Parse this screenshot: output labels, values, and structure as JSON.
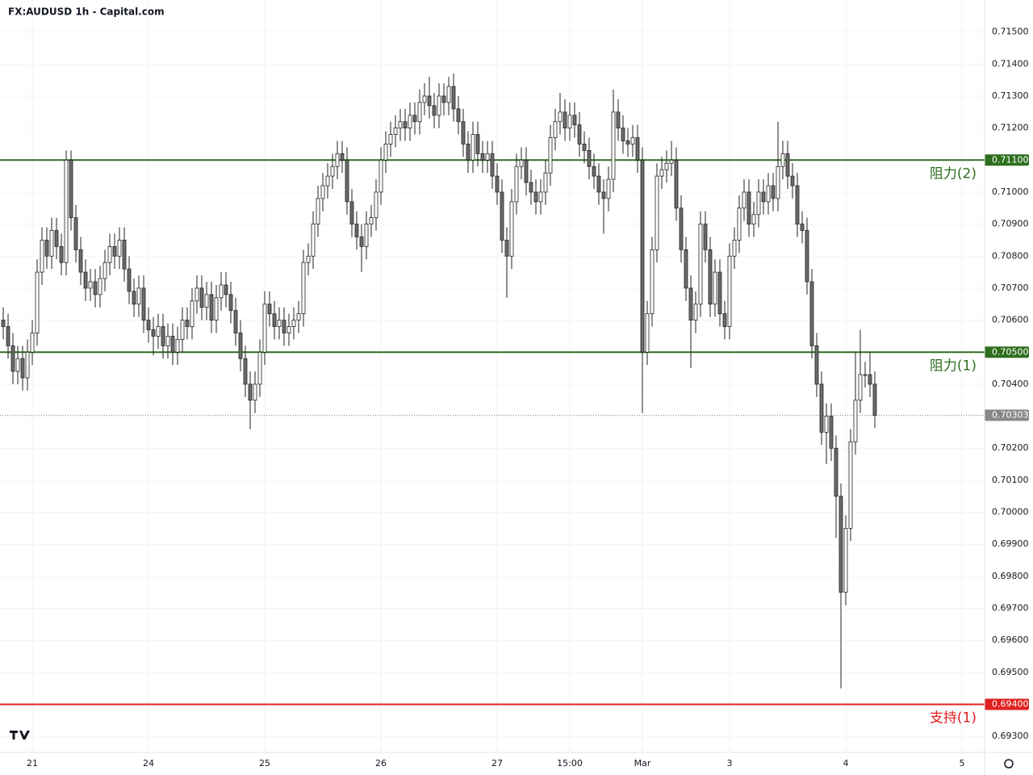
{
  "chart_data": {
    "type": "candlestick",
    "title": "FX:AUDUSD 1h - Capital.com",
    "x": [
      0,
      1,
      2,
      3,
      4,
      5,
      6,
      7,
      8,
      9,
      10,
      11,
      12,
      13,
      14,
      15,
      16,
      17,
      18,
      19,
      20,
      21,
      22,
      23,
      24,
      25,
      26,
      27,
      28,
      29,
      30,
      31,
      32,
      33,
      34,
      35,
      36,
      37,
      38,
      39,
      40,
      41,
      42,
      43,
      44,
      45,
      46,
      47,
      48,
      49,
      50,
      51,
      52,
      53,
      54,
      55,
      56,
      57,
      58,
      59,
      60,
      61,
      62,
      63,
      64,
      65,
      66,
      67,
      68,
      69,
      70,
      71,
      72,
      73,
      74,
      75,
      76,
      77,
      78,
      79,
      80,
      81,
      82,
      83,
      84,
      85,
      86,
      87,
      88,
      89,
      90,
      91,
      92,
      93,
      94,
      95,
      96,
      97,
      98,
      99,
      100,
      101,
      102,
      103,
      104,
      105,
      106,
      107,
      108,
      109,
      110,
      111,
      112,
      113,
      114,
      115,
      116,
      117,
      118,
      119,
      120,
      121,
      122,
      123,
      124,
      125,
      126,
      127,
      128,
      129,
      130,
      131,
      132,
      133,
      134,
      135,
      136,
      137,
      138,
      139,
      140,
      141,
      142,
      143,
      144,
      145,
      146,
      147,
      148,
      149,
      150,
      151,
      152,
      153,
      154,
      155,
      156,
      157,
      158,
      159,
      160,
      161,
      162,
      163,
      164,
      165,
      166,
      167,
      168,
      169,
      170,
      171,
      172,
      173,
      174,
      175,
      176,
      177,
      178,
      179,
      180
    ],
    "open": [
      0.706,
      0.7058,
      0.7052,
      0.7044,
      0.7048,
      0.7042,
      0.705,
      0.7056,
      0.7075,
      0.7085,
      0.708,
      0.7088,
      0.7083,
      0.7078,
      0.711,
      0.7092,
      0.7082,
      0.7075,
      0.707,
      0.7072,
      0.7068,
      0.7073,
      0.7078,
      0.7083,
      0.708,
      0.7085,
      0.7076,
      0.7069,
      0.7065,
      0.707,
      0.706,
      0.7057,
      0.7055,
      0.7058,
      0.7052,
      0.7055,
      0.705,
      0.7054,
      0.706,
      0.7058,
      0.7066,
      0.707,
      0.7064,
      0.7068,
      0.706,
      0.7067,
      0.7071,
      0.7068,
      0.7063,
      0.7056,
      0.7048,
      0.704,
      0.7035,
      0.704,
      0.705,
      0.7065,
      0.7062,
      0.7058,
      0.706,
      0.7056,
      0.7058,
      0.706,
      0.7062,
      0.7078,
      0.708,
      0.709,
      0.7098,
      0.7102,
      0.7105,
      0.7108,
      0.7112,
      0.711,
      0.7097,
      0.709,
      0.7086,
      0.7083,
      0.709,
      0.7092,
      0.71,
      0.711,
      0.7115,
      0.7118,
      0.712,
      0.7122,
      0.712,
      0.7124,
      0.7122,
      0.7128,
      0.713,
      0.7127,
      0.7124,
      0.713,
      0.7128,
      0.7133,
      0.7126,
      0.7122,
      0.7115,
      0.711,
      0.7118,
      0.7112,
      0.711,
      0.7112,
      0.7105,
      0.71,
      0.7085,
      0.708,
      0.7097,
      0.7108,
      0.711,
      0.7103,
      0.71,
      0.7097,
      0.71,
      0.7106,
      0.7117,
      0.7122,
      0.7125,
      0.712,
      0.7124,
      0.7121,
      0.7115,
      0.7113,
      0.7108,
      0.7105,
      0.71,
      0.7098,
      0.7104,
      0.7125,
      0.712,
      0.7116,
      0.7115,
      0.7117,
      0.711,
      0.705,
      0.7062,
      0.7082,
      0.7105,
      0.7107,
      0.7109,
      0.711,
      0.7095,
      0.7082,
      0.707,
      0.706,
      0.7065,
      0.709,
      0.7082,
      0.7065,
      0.7075,
      0.7062,
      0.7058,
      0.708,
      0.7085,
      0.7095,
      0.71,
      0.709,
      0.7093,
      0.71,
      0.7097,
      0.7102,
      0.7098,
      0.7108,
      0.7112,
      0.7105,
      0.7102,
      0.709,
      0.7088,
      0.7072,
      0.7052,
      0.704,
      0.7025,
      0.703,
      0.702,
      0.7005,
      0.6975,
      0.6995,
      0.7022,
      0.7035,
      0.7043,
      0.7043,
      0.704
    ],
    "high": [
      0.7064,
      0.7062,
      0.7056,
      0.7052,
      0.7052,
      0.7054,
      0.706,
      0.7079,
      0.7089,
      0.7089,
      0.7092,
      0.7092,
      0.7087,
      0.7113,
      0.7113,
      0.7096,
      0.7086,
      0.7079,
      0.7076,
      0.7076,
      0.7077,
      0.7082,
      0.7087,
      0.7087,
      0.7089,
      0.7089,
      0.708,
      0.7073,
      0.7074,
      0.7074,
      0.7064,
      0.7061,
      0.7062,
      0.7062,
      0.7059,
      0.7059,
      0.7058,
      0.7064,
      0.7064,
      0.707,
      0.7074,
      0.7074,
      0.7072,
      0.7072,
      0.7071,
      0.7075,
      0.7075,
      0.7072,
      0.7067,
      0.706,
      0.7052,
      0.7044,
      0.7044,
      0.7054,
      0.7069,
      0.7069,
      0.7066,
      0.7064,
      0.7064,
      0.7062,
      0.7064,
      0.7066,
      0.7082,
      0.7084,
      0.7094,
      0.7102,
      0.7106,
      0.7109,
      0.7112,
      0.7116,
      0.7116,
      0.7114,
      0.7101,
      0.7094,
      0.709,
      0.7094,
      0.7096,
      0.7104,
      0.7114,
      0.7119,
      0.7122,
      0.7124,
      0.7126,
      0.7126,
      0.7128,
      0.7128,
      0.7132,
      0.7134,
      0.7136,
      0.7131,
      0.7134,
      0.7134,
      0.7136,
      0.7137,
      0.713,
      0.7126,
      0.7119,
      0.7122,
      0.7122,
      0.7116,
      0.7116,
      0.7116,
      0.7109,
      0.7104,
      0.7089,
      0.7101,
      0.7112,
      0.7114,
      0.7114,
      0.7107,
      0.7104,
      0.7104,
      0.711,
      0.7121,
      0.7126,
      0.7131,
      0.7129,
      0.7128,
      0.7128,
      0.7125,
      0.7119,
      0.7117,
      0.7112,
      0.7109,
      0.7104,
      0.7108,
      0.7132,
      0.7129,
      0.7124,
      0.712,
      0.7121,
      0.7121,
      0.7114,
      0.7066,
      0.7086,
      0.7109,
      0.7111,
      0.7113,
      0.7116,
      0.7114,
      0.7099,
      0.7086,
      0.7074,
      0.7069,
      0.7094,
      0.7094,
      0.7086,
      0.7079,
      0.7079,
      0.7066,
      0.7084,
      0.7089,
      0.7099,
      0.7104,
      0.7104,
      0.7097,
      0.7104,
      0.7104,
      0.7106,
      0.7106,
      0.7122,
      0.7116,
      0.7116,
      0.7109,
      0.7106,
      0.7094,
      0.7092,
      0.7076,
      0.7056,
      0.7044,
      0.7034,
      0.7034,
      0.7024,
      0.7009,
      0.6999,
      0.7026,
      0.705,
      0.7057,
      0.7047,
      0.705,
      0.7044
    ],
    "low": [
      0.7054,
      0.7048,
      0.704,
      0.704,
      0.7038,
      0.7038,
      0.7046,
      0.7052,
      0.7071,
      0.7076,
      0.7076,
      0.7079,
      0.7074,
      0.7074,
      0.7088,
      0.7078,
      0.7071,
      0.7066,
      0.7066,
      0.7064,
      0.7064,
      0.7069,
      0.7074,
      0.7076,
      0.7076,
      0.7072,
      0.7065,
      0.7061,
      0.7061,
      0.7056,
      0.7053,
      0.7049,
      0.7051,
      0.7048,
      0.7048,
      0.7046,
      0.7046,
      0.705,
      0.7054,
      0.7054,
      0.7062,
      0.706,
      0.706,
      0.7056,
      0.7056,
      0.7063,
      0.7064,
      0.7059,
      0.7052,
      0.7044,
      0.7036,
      0.7026,
      0.7031,
      0.7036,
      0.7046,
      0.7058,
      0.7054,
      0.7054,
      0.7052,
      0.7052,
      0.7054,
      0.7056,
      0.7058,
      0.7074,
      0.7076,
      0.7086,
      0.7094,
      0.7098,
      0.7101,
      0.7104,
      0.7106,
      0.7093,
      0.7086,
      0.7082,
      0.7075,
      0.7079,
      0.7086,
      0.7088,
      0.7096,
      0.7106,
      0.7111,
      0.7114,
      0.7116,
      0.7116,
      0.7116,
      0.7118,
      0.7118,
      0.7124,
      0.7123,
      0.712,
      0.712,
      0.7124,
      0.7124,
      0.7122,
      0.7118,
      0.7111,
      0.7106,
      0.7106,
      0.7108,
      0.7106,
      0.7106,
      0.7101,
      0.7096,
      0.7081,
      0.7067,
      0.7076,
      0.7093,
      0.7104,
      0.7099,
      0.7096,
      0.7093,
      0.7093,
      0.7096,
      0.7102,
      0.7113,
      0.7118,
      0.7116,
      0.7116,
      0.7117,
      0.7111,
      0.7109,
      0.7104,
      0.7101,
      0.7096,
      0.7087,
      0.7094,
      0.71,
      0.7116,
      0.7112,
      0.7111,
      0.7111,
      0.7106,
      0.7031,
      0.7046,
      0.7058,
      0.7078,
      0.7101,
      0.7103,
      0.7105,
      0.7091,
      0.7078,
      0.7066,
      0.7045,
      0.7056,
      0.7061,
      0.7078,
      0.7061,
      0.7061,
      0.7058,
      0.7054,
      0.7054,
      0.7076,
      0.7081,
      0.7091,
      0.7086,
      0.7086,
      0.7089,
      0.7093,
      0.7093,
      0.7094,
      0.7094,
      0.7104,
      0.7101,
      0.7098,
      0.7086,
      0.7084,
      0.7068,
      0.7048,
      0.7036,
      0.7021,
      0.7015,
      0.7016,
      0.6992,
      0.6945,
      0.6971,
      0.6991,
      0.7018,
      0.7031,
      0.7039,
      0.7036,
      0.70263
    ],
    "close": [
      0.7058,
      0.7052,
      0.7044,
      0.7048,
      0.7042,
      0.705,
      0.7056,
      0.7075,
      0.7085,
      0.708,
      0.7088,
      0.7083,
      0.7078,
      0.711,
      0.7092,
      0.7082,
      0.7075,
      0.707,
      0.7072,
      0.7068,
      0.7073,
      0.7078,
      0.7083,
      0.708,
      0.7085,
      0.7076,
      0.7069,
      0.7065,
      0.707,
      0.706,
      0.7057,
      0.7055,
      0.7058,
      0.7052,
      0.7055,
      0.705,
      0.7054,
      0.706,
      0.7058,
      0.7066,
      0.707,
      0.7064,
      0.7068,
      0.706,
      0.7067,
      0.7071,
      0.7068,
      0.7063,
      0.7056,
      0.7048,
      0.704,
      0.7035,
      0.704,
      0.705,
      0.7065,
      0.7062,
      0.7058,
      0.706,
      0.7056,
      0.7058,
      0.706,
      0.7062,
      0.7078,
      0.708,
      0.709,
      0.7098,
      0.7102,
      0.7105,
      0.7108,
      0.7112,
      0.711,
      0.7097,
      0.709,
      0.7086,
      0.7083,
      0.709,
      0.7092,
      0.71,
      0.711,
      0.7115,
      0.7118,
      0.712,
      0.7122,
      0.712,
      0.7124,
      0.7122,
      0.7128,
      0.713,
      0.7127,
      0.7124,
      0.713,
      0.7128,
      0.7133,
      0.7126,
      0.7122,
      0.7115,
      0.711,
      0.7118,
      0.7112,
      0.711,
      0.7112,
      0.7105,
      0.71,
      0.7085,
      0.708,
      0.7097,
      0.7108,
      0.711,
      0.7103,
      0.71,
      0.7097,
      0.71,
      0.7106,
      0.7117,
      0.7122,
      0.7125,
      0.712,
      0.7124,
      0.7121,
      0.7115,
      0.7113,
      0.7108,
      0.7105,
      0.71,
      0.7098,
      0.7104,
      0.7125,
      0.712,
      0.7116,
      0.7115,
      0.7117,
      0.711,
      0.705,
      0.7062,
      0.7082,
      0.7105,
      0.7107,
      0.7109,
      0.711,
      0.7095,
      0.7082,
      0.707,
      0.706,
      0.7065,
      0.709,
      0.7082,
      0.7065,
      0.7075,
      0.7062,
      0.7058,
      0.708,
      0.7085,
      0.7095,
      0.71,
      0.709,
      0.7093,
      0.71,
      0.7097,
      0.7102,
      0.7098,
      0.7108,
      0.7112,
      0.7105,
      0.7102,
      0.709,
      0.7088,
      0.7072,
      0.7052,
      0.704,
      0.7025,
      0.703,
      0.702,
      0.7005,
      0.6975,
      0.6995,
      0.7022,
      0.7035,
      0.7043,
      0.7043,
      0.704,
      0.70303
    ],
    "up_color": "#ffffff",
    "down_color": "#6b6b6b",
    "edge_color": "#222222",
    "xlim": [
      -0.67,
      202.67
    ],
    "xticks": [
      {
        "value": 6,
        "label": "21"
      },
      {
        "value": 30,
        "label": "24"
      },
      {
        "value": 54,
        "label": "25"
      },
      {
        "value": 78,
        "label": "26"
      },
      {
        "value": 102,
        "label": "27"
      },
      {
        "value": 117,
        "label": "15:00"
      },
      {
        "value": 132,
        "label": "Mar"
      },
      {
        "value": 150,
        "label": "3"
      },
      {
        "value": 174,
        "label": "4"
      },
      {
        "value": 198,
        "label": "5"
      }
    ],
    "ylim": [
      0.6925,
      0.716
    ],
    "yticks": [
      {
        "value": 0.693,
        "label": "0.69300"
      },
      {
        "value": 0.694,
        "label": "0.69400"
      },
      {
        "value": 0.695,
        "label": "0.69500"
      },
      {
        "value": 0.696,
        "label": "0.69600"
      },
      {
        "value": 0.697,
        "label": "0.69700"
      },
      {
        "value": 0.698,
        "label": "0.69800"
      },
      {
        "value": 0.699,
        "label": "0.69900"
      },
      {
        "value": 0.7,
        "label": "0.70000"
      },
      {
        "value": 0.701,
        "label": "0.70100"
      },
      {
        "value": 0.702,
        "label": "0.70200"
      },
      {
        "value": 0.703,
        "label": "0.70300"
      },
      {
        "value": 0.704,
        "label": "0.70400"
      },
      {
        "value": 0.705,
        "label": "0.70500"
      },
      {
        "value": 0.706,
        "label": "0.70600"
      },
      {
        "value": 0.707,
        "label": "0.70700"
      },
      {
        "value": 0.708,
        "label": "0.70800"
      },
      {
        "value": 0.709,
        "label": "0.70900"
      },
      {
        "value": 0.71,
        "label": "0.71000"
      },
      {
        "value": 0.711,
        "label": "0.71100"
      },
      {
        "value": 0.712,
        "label": "0.71200"
      },
      {
        "value": 0.713,
        "label": "0.71300"
      },
      {
        "value": 0.714,
        "label": "0.71400"
      },
      {
        "value": 0.715,
        "label": "0.71500"
      }
    ],
    "grid": true,
    "levels": [
      {
        "name": "阻力(2)",
        "value": 0.711,
        "label": "0.71100",
        "color": "#2e6f1e"
      },
      {
        "name": "阻力(1)",
        "value": 0.705,
        "label": "0.70500",
        "color": "#2e6f1e"
      },
      {
        "name": "支持(1)",
        "value": 0.694,
        "label": "0.69400",
        "color": "#e02020"
      }
    ],
    "last_price": {
      "value": 0.70303,
      "label": "0.70303",
      "color": "#888888"
    }
  }
}
